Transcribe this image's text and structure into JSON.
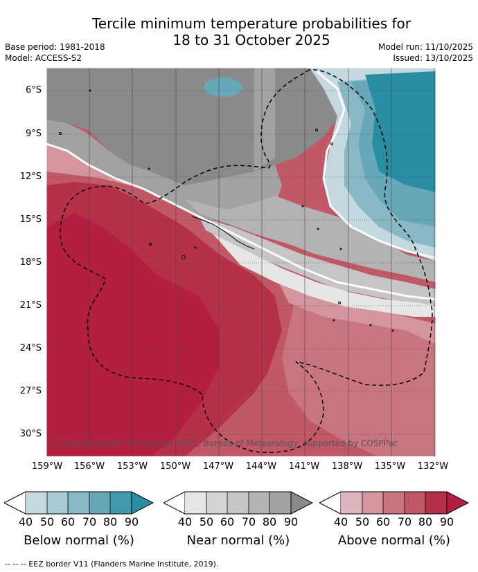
{
  "title_line1": "Tercile minimum temperature probabilities for",
  "title_line2": "18 to 31 October 2025",
  "base_period": "Base period: 1981-2018",
  "model": "Model: ACCESS-S2",
  "model_run": "Model run: 11/10/2025",
  "issued": "Issued: 13/10/2025",
  "copyright": "© Commonwealth of Australia 2025, Bureau of Meteorology, supported by COSPPac",
  "y_ticks": [
    "6°S",
    "9°S",
    "12°S",
    "15°S",
    "18°S",
    "21°S",
    "24°S",
    "27°S",
    "30°S"
  ],
  "x_ticks": [
    "159°W",
    "156°W",
    "153°W",
    "150°W",
    "147°W",
    "144°W",
    "141°W",
    "138°W",
    "135°W",
    "132°W"
  ],
  "colorbars": {
    "below": {
      "label": "Below normal (%)",
      "ticks": [
        "40",
        "50",
        "60",
        "70",
        "80",
        "90"
      ],
      "colors": [
        "#c3d8df",
        "#a6cbd3",
        "#87b8c4",
        "#67a8b8",
        "#4399ab",
        "#2a8ea2"
      ]
    },
    "near": {
      "label": "Near normal (%)",
      "ticks": [
        "40",
        "50",
        "60",
        "70",
        "80",
        "90"
      ],
      "colors": [
        "#e6e6e6",
        "#d4d4d4",
        "#c5c5c5",
        "#b3b3b3",
        "#a2a2a2",
        "#8a8a8a"
      ]
    },
    "above": {
      "label": "Above normal (%)",
      "ticks": [
        "40",
        "50",
        "60",
        "70",
        "80",
        "90"
      ],
      "colors": [
        "#dfb5bd",
        "#d5959e",
        "#c97580",
        "#c05866",
        "#b53049",
        "#b41e3f"
      ]
    }
  },
  "footnote": "--  --  -- EEZ border V11 (Flanders Marine Institute, 2019)."
}
